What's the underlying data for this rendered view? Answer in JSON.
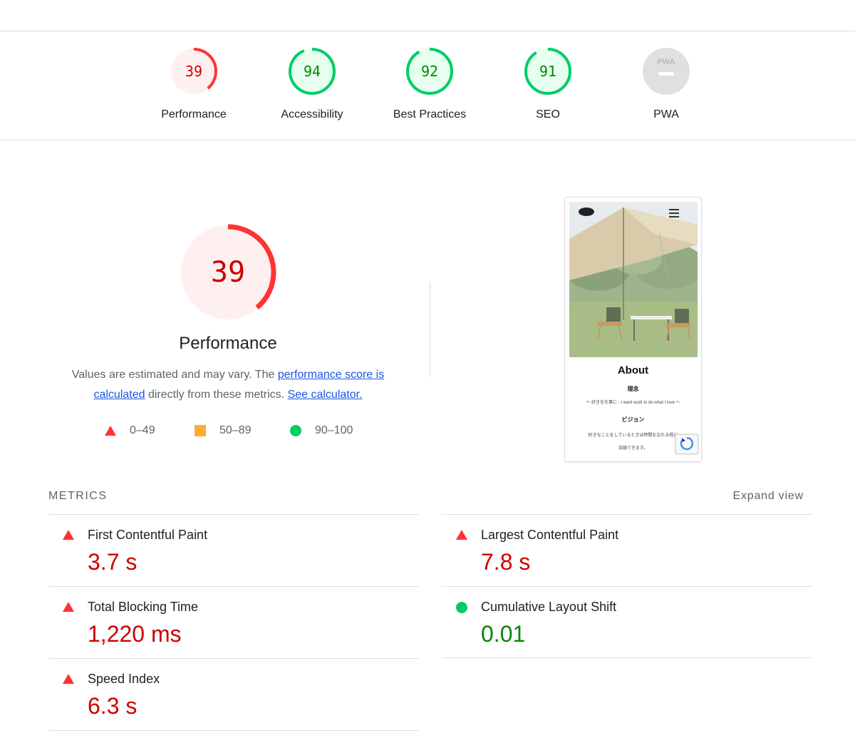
{
  "categories": [
    {
      "label": "Performance",
      "score": "39",
      "fraction": 0.39,
      "status": "fail"
    },
    {
      "label": "Accessibility",
      "score": "94",
      "fraction": 0.94,
      "status": "pass"
    },
    {
      "label": "Best Practices",
      "score": "92",
      "fraction": 0.92,
      "status": "pass"
    },
    {
      "label": "SEO",
      "score": "91",
      "fraction": 0.91,
      "status": "pass"
    },
    {
      "label": "PWA",
      "badge": "PWA",
      "status": "na"
    }
  ],
  "performance": {
    "score": "39",
    "fraction": 0.39,
    "title": "Performance",
    "desc_prefix": "Values are estimated and may vary. The ",
    "desc_link1": "performance score is calculated",
    "desc_middle": " directly from these metrics. ",
    "desc_link2": "See calculator."
  },
  "legend": [
    {
      "range": "0–49",
      "shape": "triangle-icon"
    },
    {
      "range": "50–89",
      "shape": "square-icon"
    },
    {
      "range": "90–100",
      "shape": "circle-icon"
    }
  ],
  "screenshot": {
    "about": "About",
    "heading1": "理念",
    "line1": "～ 好きを仕事に - I want work to do what I love ～",
    "heading2": "ビジョン",
    "line2": "好きなことをしているときは時間を忘れる程に",
    "line3": "没頭できます。"
  },
  "metrics": {
    "header": "METRICS",
    "expand_label": "Expand view",
    "items": [
      {
        "name": "First Contentful Paint",
        "value": "3.7 s",
        "status": "fail"
      },
      {
        "name": "Largest Contentful Paint",
        "value": "7.8 s",
        "status": "fail"
      },
      {
        "name": "Total Blocking Time",
        "value": "1,220 ms",
        "status": "fail"
      },
      {
        "name": "Cumulative Layout Shift",
        "value": "0.01",
        "status": "pass"
      },
      {
        "name": "Speed Index",
        "value": "6.3 s",
        "status": "fail"
      }
    ]
  },
  "colors": {
    "fail": "#ff3333",
    "fail_text": "#cc0000",
    "fail_bg": "#fff0f0",
    "average": "#ffaa33",
    "pass": "#00cc66",
    "pass_text": "#008800",
    "pass_bg": "#e6ffee",
    "na_bg": "#e0e0e0",
    "link": "#1a55e3"
  }
}
